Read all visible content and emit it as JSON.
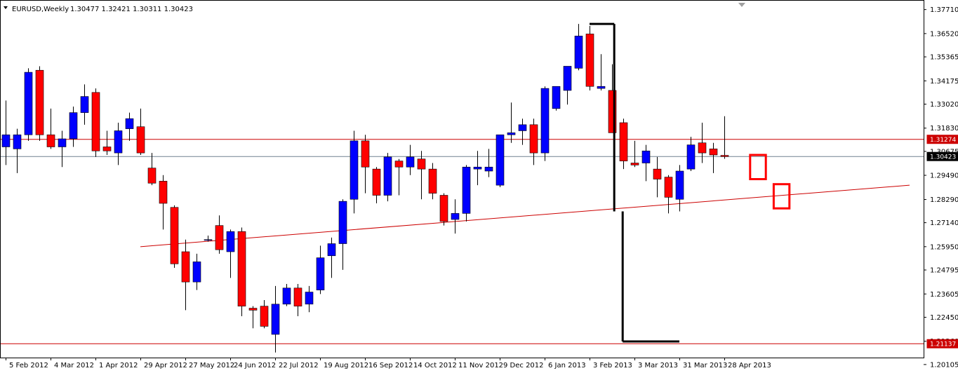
{
  "header": {
    "symbol_text": "EURUSD,Weekly",
    "ohlc_text": "1.30477 1.32421 1.30311 1.30423"
  },
  "colors": {
    "bull": "#0000ff",
    "bear": "#ff0000",
    "wick": "#000000",
    "level": "#cc0000",
    "bid": "#708090",
    "drawing": "#000000",
    "box": "#ff0000"
  },
  "chart_data": {
    "type": "candlestick",
    "title": "",
    "ylim": [
      1.2045,
      1.3815
    ],
    "y_ticks": [
      "1.37710",
      "1.36520",
      "1.35365",
      "1.34175",
      "1.33020",
      "1.31830",
      "1.30675",
      "1.29490",
      "1.28290",
      "1.27140",
      "1.25950",
      "1.24795",
      "1.23605",
      "1.22450",
      "1.21260",
      "1.20105"
    ],
    "x_labels": [
      {
        "index": 0,
        "label": "5 Feb 2012"
      },
      {
        "index": 4,
        "label": "4 Mar 2012"
      },
      {
        "index": 8,
        "label": "1 Apr 2012"
      },
      {
        "index": 12,
        "label": "29 Apr 2012"
      },
      {
        "index": 16,
        "label": "27 May 2012"
      },
      {
        "index": 20,
        "label": "24 Jun 2012"
      },
      {
        "index": 24,
        "label": "22 Jul 2012"
      },
      {
        "index": 28,
        "label": "19 Aug 2012"
      },
      {
        "index": 32,
        "label": "16 Sep 2012"
      },
      {
        "index": 36,
        "label": "14 Oct 2012"
      },
      {
        "index": 40,
        "label": "11 Nov 2012"
      },
      {
        "index": 44,
        "label": "9 Dec 2012"
      },
      {
        "index": 48,
        "label": "6 Jan 2013"
      },
      {
        "index": 52,
        "label": "3 Feb 2013"
      },
      {
        "index": 56,
        "label": "3 Mar 2013"
      },
      {
        "index": 60,
        "label": "31 Mar 2013"
      },
      {
        "index": 64,
        "label": "28 Apr 2013"
      }
    ],
    "candles": [
      [
        1.309,
        1.332,
        1.3,
        1.315
      ],
      [
        1.308,
        1.318,
        1.296,
        1.315
      ],
      [
        1.315,
        1.348,
        1.312,
        1.346
      ],
      [
        1.347,
        1.349,
        1.312,
        1.315
      ],
      [
        1.315,
        1.328,
        1.308,
        1.309
      ],
      [
        1.309,
        1.317,
        1.299,
        1.313
      ],
      [
        1.313,
        1.329,
        1.309,
        1.326
      ],
      [
        1.326,
        1.34,
        1.32,
        1.334
      ],
      [
        1.336,
        1.338,
        1.304,
        1.307
      ],
      [
        1.309,
        1.317,
        1.305,
        1.307
      ],
      [
        1.306,
        1.321,
        1.3,
        1.317
      ],
      [
        1.318,
        1.326,
        1.312,
        1.323
      ],
      [
        1.319,
        1.328,
        1.305,
        1.306
      ],
      [
        1.2985,
        1.306,
        1.29,
        1.291
      ],
      [
        1.292,
        1.295,
        1.268,
        1.281
      ],
      [
        1.279,
        1.28,
        1.249,
        1.251
      ],
      [
        1.257,
        1.263,
        1.228,
        1.242
      ],
      [
        1.242,
        1.256,
        1.238,
        1.252
      ],
      [
        1.263,
        1.265,
        1.262,
        1.263
      ],
      [
        1.27,
        1.275,
        1.256,
        1.258
      ],
      [
        1.257,
        1.268,
        1.244,
        1.267
      ],
      [
        1.267,
        1.269,
        1.225,
        1.23
      ],
      [
        1.229,
        1.23,
        1.219,
        1.228
      ],
      [
        1.23,
        1.233,
        1.219,
        1.22
      ],
      [
        1.216,
        1.24,
        1.207,
        1.231
      ],
      [
        1.231,
        1.241,
        1.23,
        1.239
      ],
      [
        1.239,
        1.241,
        1.225,
        1.23
      ],
      [
        1.231,
        1.24,
        1.227,
        1.237
      ],
      [
        1.238,
        1.26,
        1.236,
        1.254
      ],
      [
        1.255,
        1.264,
        1.244,
        1.261
      ],
      [
        1.261,
        1.283,
        1.248,
        1.282
      ],
      [
        1.283,
        1.317,
        1.276,
        1.312
      ],
      [
        1.312,
        1.315,
        1.286,
        1.299
      ],
      [
        1.298,
        1.299,
        1.281,
        1.285
      ],
      [
        1.285,
        1.306,
        1.282,
        1.304
      ],
      [
        1.302,
        1.303,
        1.285,
        1.299
      ],
      [
        1.299,
        1.31,
        1.295,
        1.304
      ],
      [
        1.303,
        1.307,
        1.283,
        1.298
      ],
      [
        1.298,
        1.301,
        1.283,
        1.286
      ],
      [
        1.285,
        1.286,
        1.27,
        1.272
      ],
      [
        1.273,
        1.283,
        1.266,
        1.276
      ],
      [
        1.276,
        1.3,
        1.272,
        1.299
      ],
      [
        1.298,
        1.307,
        1.29,
        1.299
      ],
      [
        1.297,
        1.308,
        1.294,
        1.299
      ],
      [
        1.29,
        1.315,
        1.289,
        1.315
      ],
      [
        1.315,
        1.331,
        1.311,
        1.316
      ],
      [
        1.317,
        1.323,
        1.31,
        1.32
      ],
      [
        1.32,
        1.323,
        1.3,
        1.306
      ],
      [
        1.306,
        1.339,
        1.302,
        1.338
      ],
      [
        1.328,
        1.339,
        1.327,
        1.339
      ],
      [
        1.337,
        1.349,
        1.33,
        1.349
      ],
      [
        1.348,
        1.37,
        1.347,
        1.364
      ],
      [
        1.365,
        1.369,
        1.337,
        1.339
      ],
      [
        1.338,
        1.355,
        1.337,
        1.339
      ],
      [
        1.337,
        1.35,
        1.316,
        1.316
      ],
      [
        1.321,
        1.323,
        1.298,
        1.302
      ],
      [
        1.301,
        1.312,
        1.299,
        1.3
      ],
      [
        1.301,
        1.31,
        1.292,
        1.307
      ],
      [
        1.298,
        1.304,
        1.284,
        1.293
      ],
      [
        1.294,
        1.295,
        1.276,
        1.284
      ],
      [
        1.283,
        1.3,
        1.277,
        1.297
      ],
      [
        1.298,
        1.314,
        1.297,
        1.31
      ],
      [
        1.311,
        1.321,
        1.301,
        1.306
      ],
      [
        1.308,
        1.311,
        1.296,
        1.305
      ],
      [
        1.3048,
        1.3242,
        1.3031,
        1.3042
      ]
    ],
    "horizontal_levels": [
      {
        "value": 1.31274,
        "label": "1.31274"
      },
      {
        "value": 1.21137,
        "label": "1.21137"
      }
    ],
    "current_price": {
      "value": 1.30423,
      "label": "1.30423"
    },
    "trend_line": {
      "start": [
        12,
        1.2595
      ],
      "end": [
        80.5,
        1.29
      ]
    },
    "measure_lines": {
      "top_price": 1.37,
      "low_price": 1.277,
      "bottom_price": 1.2125,
      "vertical_index": 54.2,
      "top_from_index": 52,
      "bottom_to_index": 60
    },
    "target_boxes": [
      {
        "x_index_left": 66.3,
        "x_index_right": 67.7,
        "y_high": 1.305,
        "y_low": 1.293
      },
      {
        "x_index_left": 68.4,
        "x_index_right": 69.8,
        "y_high": 1.2905,
        "y_low": 1.2785
      }
    ]
  }
}
